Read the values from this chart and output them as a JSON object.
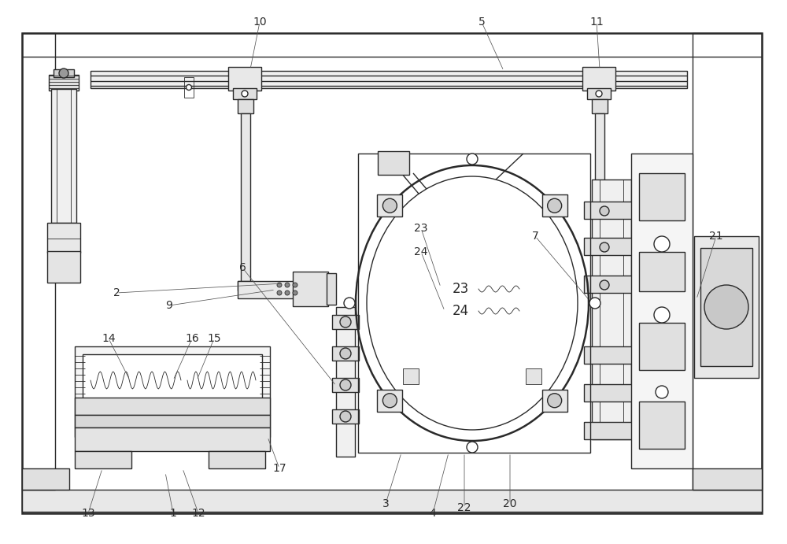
{
  "bg_color": "#ffffff",
  "lc": "#2a2a2a",
  "lw": 1.0,
  "tlw": 0.6,
  "thw": 1.8,
  "fig_width": 10.0,
  "fig_height": 6.91,
  "dpi": 100
}
